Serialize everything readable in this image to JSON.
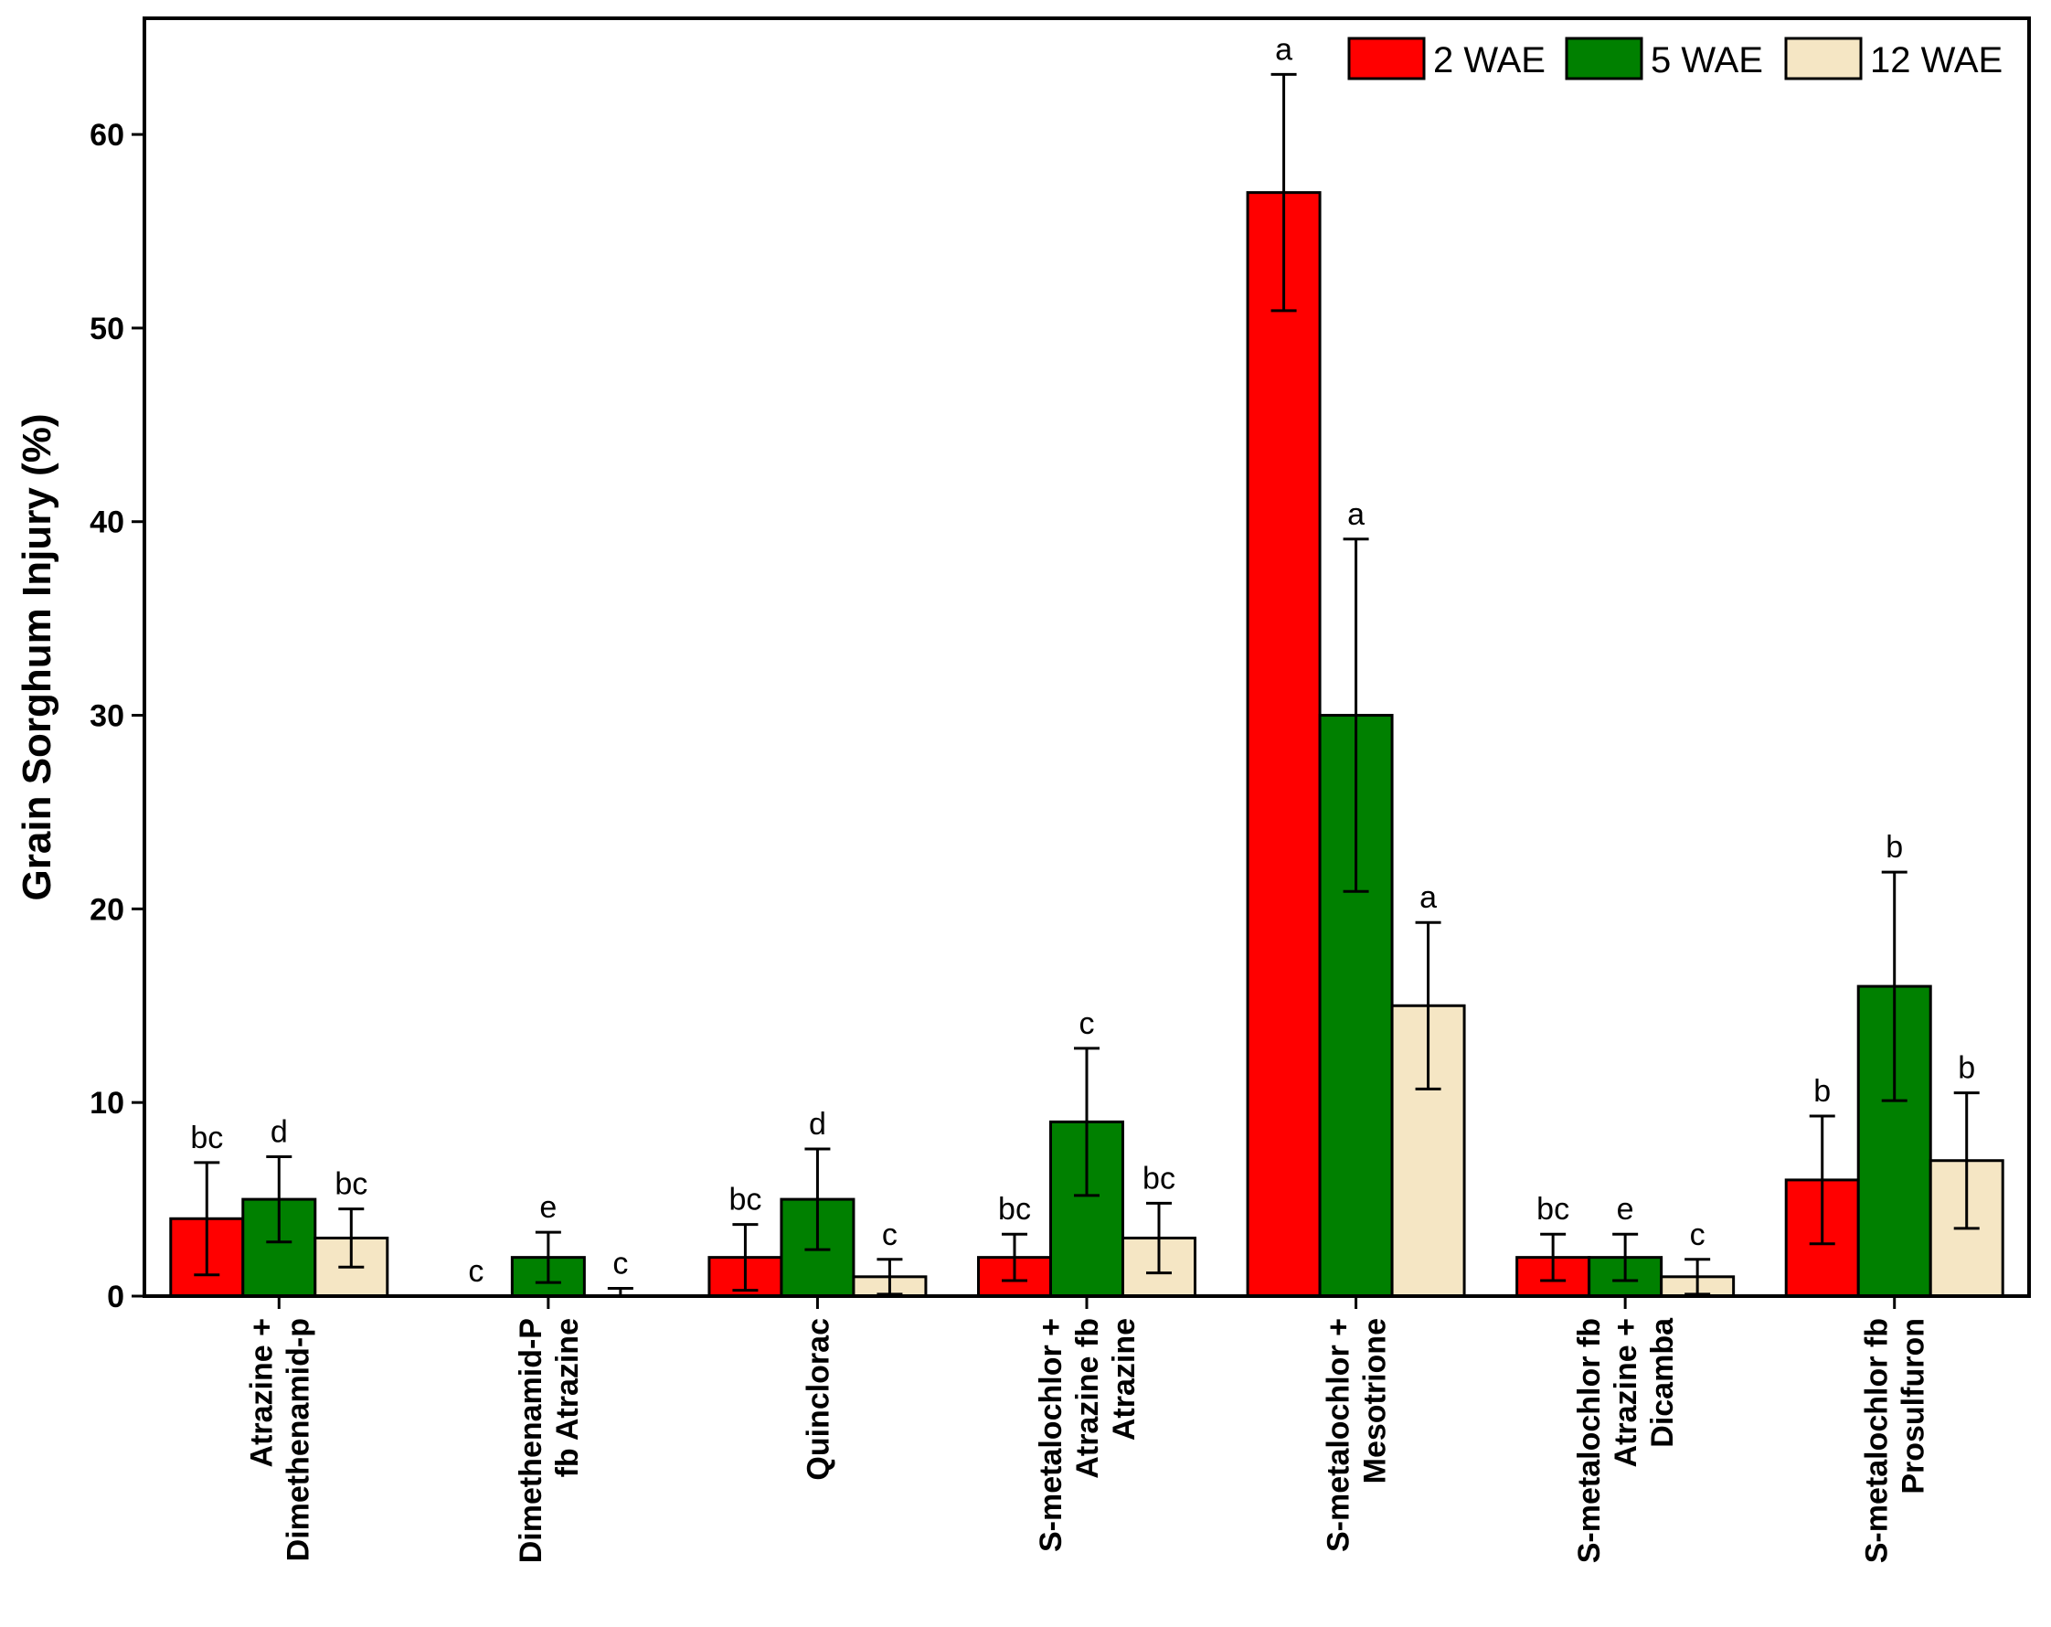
{
  "chart_data": {
    "type": "bar",
    "title": "",
    "xlabel": "",
    "ylabel": "Grain Sorghum Injury (%)",
    "ylim": [
      0,
      66
    ],
    "yticks": [
      0,
      10,
      20,
      30,
      40,
      50,
      60
    ],
    "grid": false,
    "legend_position": "top-right",
    "categories": [
      [
        "Atrazine +",
        "Dimethenamid-p"
      ],
      [
        "Dimethenamid-P",
        "fb Atrazine"
      ],
      [
        "Quinclorac"
      ],
      [
        "S-metalochlor +",
        "Atrazine fb",
        "Atrazine"
      ],
      [
        "S-metalochlor +",
        "Mesotrione"
      ],
      [
        "S-metalochlor fb",
        "Atrazine +",
        "Dicamba"
      ],
      [
        "S-metalochlor fb",
        "Prosulfuron"
      ]
    ],
    "series": [
      {
        "name": "2 WAE",
        "color": "#ff0000",
        "values": [
          4,
          0,
          2,
          2,
          57,
          2,
          6
        ],
        "errors": [
          2.9,
          0,
          1.7,
          1.2,
          6.1,
          1.2,
          3.3
        ],
        "letters": [
          "bc",
          "c",
          "bc",
          "bc",
          "a",
          "bc",
          "b"
        ]
      },
      {
        "name": "5 WAE",
        "color": "#008000",
        "values": [
          5,
          2,
          5,
          9,
          30,
          2,
          16
        ],
        "errors": [
          2.2,
          1.3,
          2.6,
          3.8,
          9.1,
          1.2,
          5.9
        ],
        "letters": [
          "d",
          "e",
          "d",
          "c",
          "a",
          "e",
          "b"
        ]
      },
      {
        "name": "12 WAE",
        "color": "#f5e6c4",
        "values": [
          3,
          0,
          1,
          3,
          15,
          1,
          7
        ],
        "errors": [
          1.5,
          0.4,
          0.9,
          1.8,
          4.3,
          0.9,
          3.5
        ],
        "letters": [
          "bc",
          "c",
          "c",
          "bc",
          "a",
          "c",
          "b"
        ]
      }
    ]
  }
}
